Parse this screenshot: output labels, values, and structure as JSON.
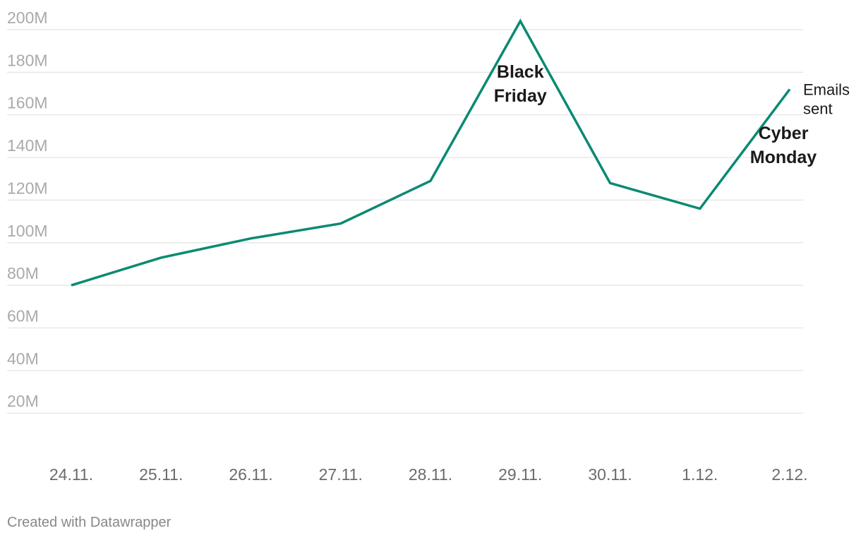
{
  "chart_data": {
    "type": "line",
    "title": "",
    "xlabel": "",
    "ylabel": "",
    "categories": [
      "24.11.",
      "25.11.",
      "26.11.",
      "27.11.",
      "28.11.",
      "29.11.",
      "30.11.",
      "1.12.",
      "2.12."
    ],
    "series": [
      {
        "name": "Emails sent",
        "values": [
          80,
          93,
          102,
          109,
          129,
          204,
          128,
          116,
          172
        ],
        "color": "#0a8a72"
      }
    ],
    "y_ticks": [
      20,
      40,
      60,
      80,
      100,
      120,
      140,
      160,
      180,
      200
    ],
    "y_tick_labels": [
      "20M",
      "40M",
      "60M",
      "80M",
      "100M",
      "120M",
      "140M",
      "160M",
      "180M",
      "200M"
    ],
    "ylim": [
      0,
      200
    ],
    "grid": true,
    "annotations": [
      {
        "category": "29.11.",
        "lines": [
          "Black",
          "Friday"
        ]
      },
      {
        "category": "2.12.",
        "lines": [
          "Cyber",
          "Monday"
        ]
      }
    ],
    "series_label_lines": [
      "Emails",
      "sent"
    ],
    "credit": "Created with Datawrapper"
  }
}
